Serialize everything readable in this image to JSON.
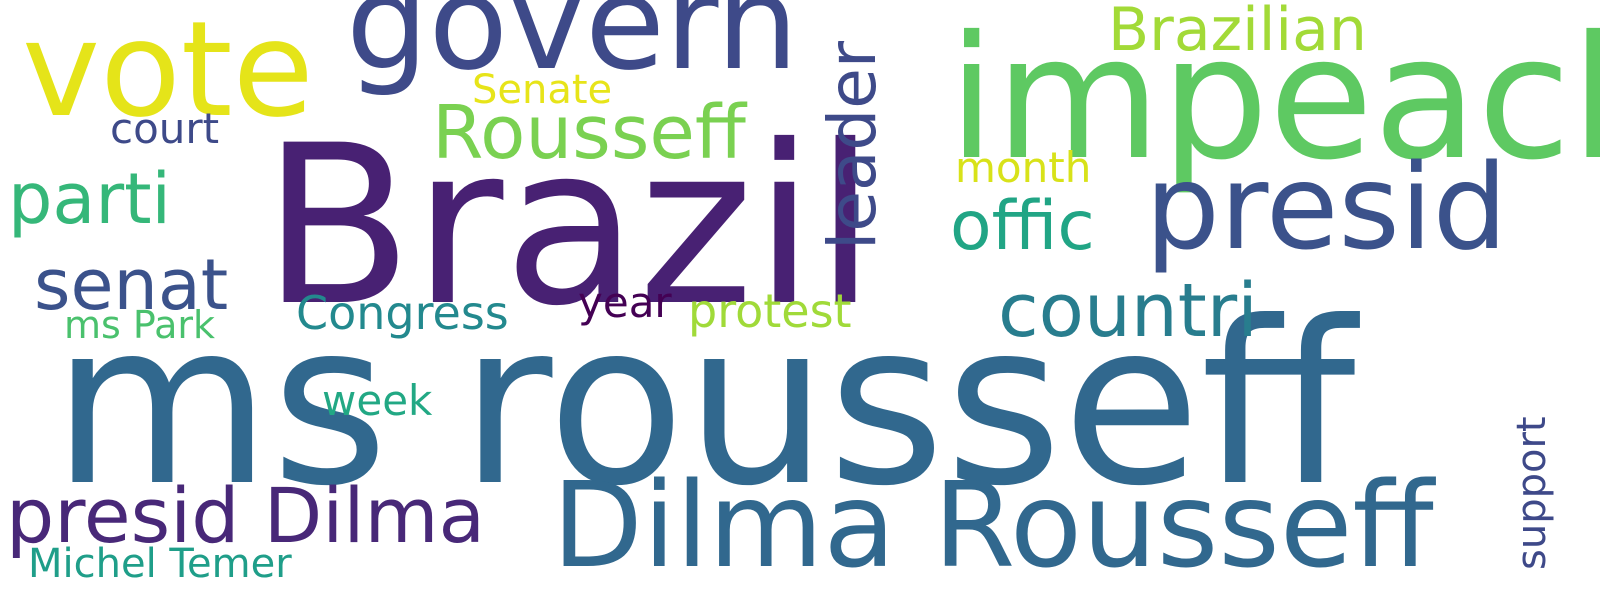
{
  "words": [
    {
      "text": "ms rousseff",
      "color": "#31688e"
    },
    {
      "text": "Brazil",
      "color": "#482173"
    },
    {
      "text": "impeach",
      "color": "#5ec962"
    },
    {
      "text": "vote",
      "color": "#e5e419"
    },
    {
      "text": "govern",
      "color": "#3e4a89"
    },
    {
      "text": "presid",
      "color": "#3b528b"
    },
    {
      "text": "Dilma Rousseff",
      "color": "#31688e"
    },
    {
      "text": "Rousseff",
      "color": "#7ad151"
    },
    {
      "text": "Brazilian",
      "color": "#a2da37"
    },
    {
      "text": "leader",
      "color": "#3e4a89"
    },
    {
      "text": "countri",
      "color": "#287d8e"
    },
    {
      "text": "offic",
      "color": "#21a585"
    },
    {
      "text": "presid Dilma",
      "color": "#482878"
    },
    {
      "text": "senat",
      "color": "#3b528b"
    },
    {
      "text": "parti",
      "color": "#35b779"
    },
    {
      "text": "Congress",
      "color": "#23898e"
    },
    {
      "text": "protest",
      "color": "#a0da39"
    },
    {
      "text": "month",
      "color": "#d8e219"
    },
    {
      "text": "Senate",
      "color": "#e7e419"
    },
    {
      "text": "court",
      "color": "#3e4a89"
    },
    {
      "text": "year",
      "color": "#440154"
    },
    {
      "text": "week",
      "color": "#22a884"
    },
    {
      "text": "ms Park",
      "color": "#4ac16d"
    },
    {
      "text": "support",
      "color": "#3e4989"
    },
    {
      "text": "Michel Temer",
      "color": "#1f9e89"
    }
  ]
}
